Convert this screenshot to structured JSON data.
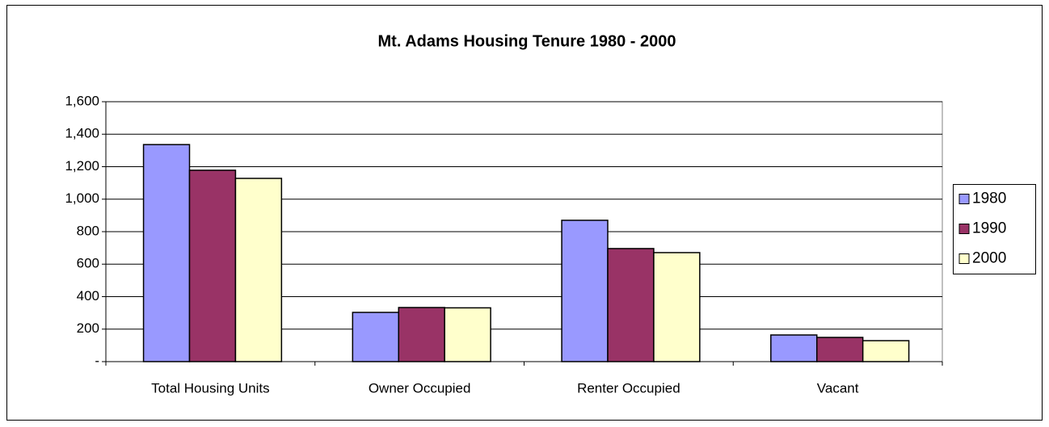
{
  "chart_data": {
    "type": "bar",
    "title": "Mt. Adams Housing Tenure 1980 - 2000",
    "categories": [
      "Total Housing Units",
      "Owner Occupied",
      "Renter Occupied",
      "Vacant"
    ],
    "series": [
      {
        "name": "1980",
        "color": "#9999ff",
        "values": [
          1336,
          303,
          870,
          164
        ]
      },
      {
        "name": "1990",
        "color": "#993366",
        "values": [
          1178,
          333,
          696,
          149
        ]
      },
      {
        "name": "2000",
        "color": "#ffffcc",
        "values": [
          1128,
          331,
          671,
          129
        ]
      }
    ],
    "ylim": [
      0,
      1600
    ],
    "yticks": [
      {
        "value": 0,
        "label": "-"
      },
      200,
      400,
      600,
      800,
      {
        "value": 1000,
        "label": "1,000"
      },
      {
        "value": 1200,
        "label": "1,200"
      },
      {
        "value": 1400,
        "label": "1,400"
      },
      {
        "value": 1600,
        "label": "1,600"
      }
    ],
    "grid": true,
    "legend": "right"
  }
}
